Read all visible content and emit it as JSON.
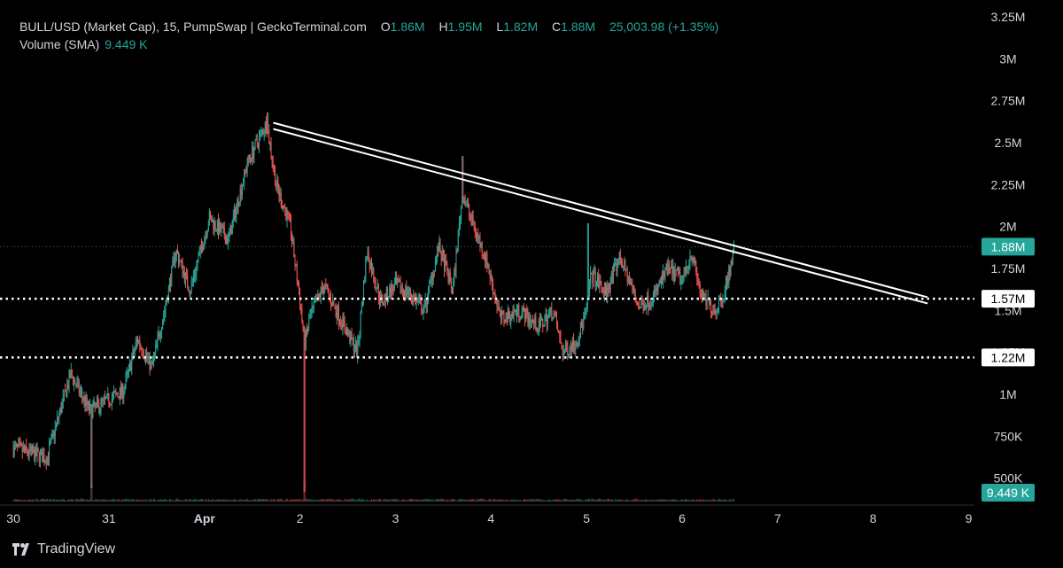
{
  "header": {
    "title": "BULL/USD (Market Cap), 15, PumpSwap | GeckoTerminal.com",
    "o_label": "O",
    "o_value": "1.86M",
    "h_label": "H",
    "h_value": "1.95M",
    "l_label": "L",
    "l_value": "1.82M",
    "c_label": "C",
    "c_value": "1.88M",
    "change": "25,003.98 (+1.35%)"
  },
  "volume": {
    "label": "Volume (SMA)",
    "value": "9.449 K"
  },
  "branding": "TradingView",
  "colors": {
    "up": "#26a69a",
    "down": "#ef5350",
    "background": "#000000",
    "text": "#d1d4dc"
  },
  "chart_data": {
    "type": "candlestick",
    "interval": "15",
    "x_tick_labels": [
      "30",
      "31",
      "Apr",
      "2",
      "3",
      "4",
      "5",
      "6",
      "7",
      "8",
      "9"
    ],
    "y_tick_labels": [
      "3.25M",
      "3M",
      "2.75M",
      "2.5M",
      "2.25M",
      "2M",
      "1.75M",
      "1.5M",
      "1.25M",
      "1M",
      "750K",
      "500K"
    ],
    "y_ticks": [
      3250000,
      3000000,
      2750000,
      2500000,
      2250000,
      2000000,
      1750000,
      1500000,
      1250000,
      1000000,
      750000,
      500000
    ],
    "ylim": [
      340000,
      3350000
    ],
    "xlim_days": [
      -0.14,
      10.06
    ],
    "price_path": [
      [
        0.0,
        0.68
      ],
      [
        0.35,
        0.62
      ],
      [
        0.6,
        1.12
      ],
      [
        0.8,
        0.9
      ],
      [
        1.0,
        0.97
      ],
      [
        1.15,
        1.02
      ],
      [
        1.3,
        1.33
      ],
      [
        1.45,
        1.16
      ],
      [
        1.6,
        1.55
      ],
      [
        1.7,
        1.86
      ],
      [
        1.85,
        1.62
      ],
      [
        2.05,
        2.05
      ],
      [
        2.25,
        1.92
      ],
      [
        2.45,
        2.38
      ],
      [
        2.65,
        2.62
      ],
      [
        2.75,
        2.25
      ],
      [
        2.9,
        2.0
      ],
      [
        3.0,
        1.55
      ],
      [
        3.05,
        1.3
      ],
      [
        3.1,
        1.45
      ],
      [
        3.25,
        1.65
      ],
      [
        3.45,
        1.42
      ],
      [
        3.6,
        1.25
      ],
      [
        3.7,
        1.85
      ],
      [
        3.85,
        1.55
      ],
      [
        4.0,
        1.65
      ],
      [
        4.15,
        1.6
      ],
      [
        4.3,
        1.5
      ],
      [
        4.45,
        1.88
      ],
      [
        4.6,
        1.62
      ],
      [
        4.7,
        2.2
      ],
      [
        4.82,
        2.0
      ],
      [
        4.95,
        1.8
      ],
      [
        5.1,
        1.45
      ],
      [
        5.3,
        1.5
      ],
      [
        5.5,
        1.4
      ],
      [
        5.65,
        1.5
      ],
      [
        5.75,
        1.25
      ],
      [
        5.9,
        1.32
      ],
      [
        6.0,
        1.5
      ],
      [
        6.05,
        1.72
      ],
      [
        6.2,
        1.6
      ],
      [
        6.35,
        1.82
      ],
      [
        6.55,
        1.52
      ],
      [
        6.7,
        1.58
      ],
      [
        6.85,
        1.75
      ],
      [
        7.0,
        1.68
      ],
      [
        7.1,
        1.85
      ],
      [
        7.2,
        1.58
      ],
      [
        7.35,
        1.5
      ],
      [
        7.45,
        1.62
      ],
      [
        7.55,
        1.88
      ]
    ],
    "trendline": {
      "from": [
        2.72,
        2.6
      ],
      "to": [
        9.57,
        1.56
      ]
    },
    "horizontal_levels": [
      {
        "value": 1570000,
        "label": "1.57M",
        "style": "dotted"
      },
      {
        "value": 1220000,
        "label": "1.22M",
        "style": "dotted"
      }
    ],
    "last_price": {
      "value": 1880000,
      "label": "1.88M"
    },
    "volume_label": "9.449 K",
    "grid": false
  }
}
